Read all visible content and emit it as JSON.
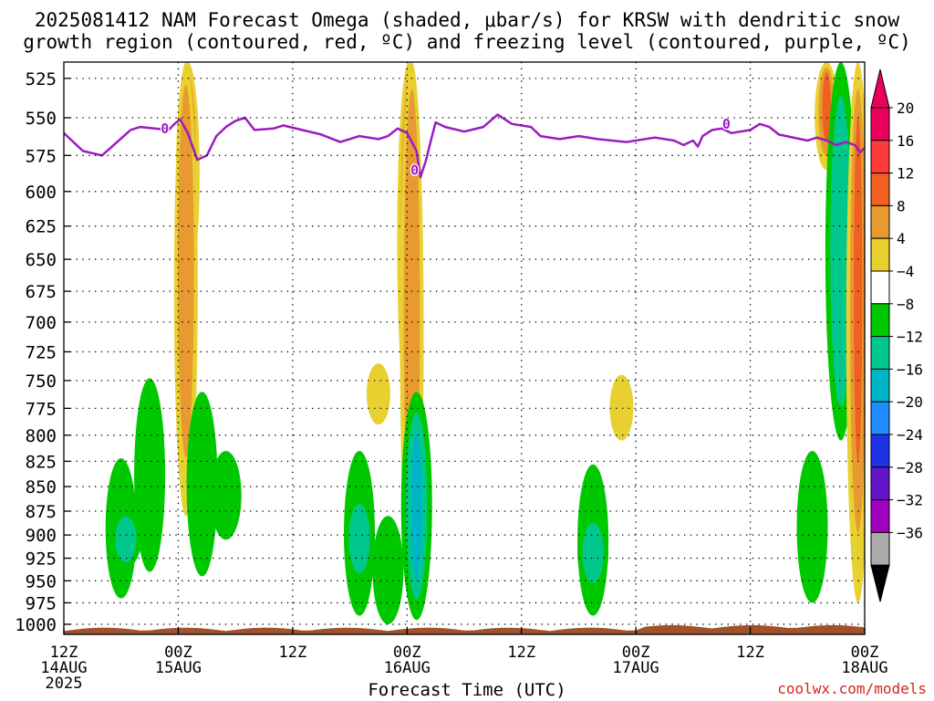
{
  "title": {
    "line1": "2025081412 NAM Forecast Omega (shaded, μbar/s) for KRSW with dendritic snow",
    "line2": "growth region (contoured, red, ºC) and freezing level (contoured, purple, ºC)"
  },
  "credit": "coolwx.com/models",
  "chart_data": {
    "type": "heatmap",
    "title": "2025081412 NAM Forecast Omega (shaded, μbar/s) for KRSW with dendritic snow growth region (contoured, red, ºC) and freezing level (contoured, purple, ºC)",
    "xlabel": "Forecast Time (UTC)",
    "ylabel": "",
    "y_ticks": [
      525,
      550,
      575,
      600,
      625,
      650,
      675,
      700,
      725,
      750,
      775,
      800,
      825,
      850,
      875,
      900,
      925,
      950,
      975,
      1000
    ],
    "y_scale": "pressure (log), inverted",
    "ylim": [
      1012,
      515
    ],
    "xlim_hours": [
      0,
      84
    ],
    "x_ticks": [
      {
        "hour": 0,
        "lines": [
          "12Z",
          "14AUG",
          "2025"
        ]
      },
      {
        "hour": 12,
        "lines": [
          "00Z",
          "15AUG"
        ]
      },
      {
        "hour": 24,
        "lines": [
          "12Z"
        ]
      },
      {
        "hour": 36,
        "lines": [
          "00Z",
          "16AUG"
        ]
      },
      {
        "hour": 48,
        "lines": [
          "12Z"
        ]
      },
      {
        "hour": 60,
        "lines": [
          "00Z",
          "17AUG"
        ]
      },
      {
        "hour": 72,
        "lines": [
          "12Z"
        ]
      },
      {
        "hour": 84,
        "lines": [
          "00Z",
          "18AUG"
        ]
      }
    ],
    "grid": true,
    "colorbar": {
      "labels": [
        "20",
        "16",
        "12",
        "8",
        "4",
        "−4",
        "−8",
        "−12",
        "−16",
        "−20",
        "−24",
        "−28",
        "−32",
        "−36"
      ],
      "colors": [
        "#e8005c",
        "#ff3a3a",
        "#f06020",
        "#e89a30",
        "#e8d030",
        "#ffffff",
        "#00c800",
        "#00c88c",
        "#00b4c8",
        "#1e8cff",
        "#1e32e6",
        "#6414c8",
        "#a000c0",
        "#aaaaaa"
      ],
      "top_color": "#e8005c",
      "bottom_color": "#000000"
    },
    "freezing_level": {
      "color": "#9b1cc0",
      "label": "0",
      "points": [
        [
          0,
          560
        ],
        [
          2,
          572
        ],
        [
          4,
          575
        ],
        [
          7,
          558
        ],
        [
          8,
          556
        ],
        [
          11,
          558
        ],
        [
          11.6,
          554
        ],
        [
          12.2,
          551
        ],
        [
          13,
          560
        ],
        [
          14,
          578
        ],
        [
          15,
          575
        ],
        [
          16,
          562
        ],
        [
          17,
          556
        ],
        [
          18,
          552
        ],
        [
          19,
          550
        ],
        [
          20,
          558
        ],
        [
          22,
          557
        ],
        [
          23,
          555
        ],
        [
          25,
          558
        ],
        [
          27,
          561
        ],
        [
          29,
          566
        ],
        [
          31,
          562
        ],
        [
          33,
          564
        ],
        [
          34,
          562
        ],
        [
          35,
          557
        ],
        [
          36,
          560
        ],
        [
          37,
          572
        ],
        [
          37.4,
          590
        ],
        [
          38,
          578
        ],
        [
          38.5,
          565
        ],
        [
          39,
          553
        ],
        [
          40,
          556
        ],
        [
          42,
          559
        ],
        [
          44,
          556
        ],
        [
          45.5,
          548
        ],
        [
          47,
          554
        ],
        [
          49,
          556
        ],
        [
          50,
          562
        ],
        [
          52,
          564
        ],
        [
          54,
          562
        ],
        [
          56,
          564
        ],
        [
          59,
          566
        ],
        [
          62,
          563
        ],
        [
          64,
          565
        ],
        [
          65,
          568
        ],
        [
          66,
          565
        ],
        [
          66.5,
          569
        ],
        [
          67,
          562
        ],
        [
          68,
          558
        ],
        [
          69,
          557
        ],
        [
          70,
          560
        ],
        [
          72,
          558
        ],
        [
          73,
          554
        ],
        [
          74,
          556
        ],
        [
          75,
          561
        ],
        [
          78,
          565
        ],
        [
          79,
          563
        ],
        [
          80,
          565
        ],
        [
          81,
          568
        ],
        [
          82,
          566
        ],
        [
          83,
          568
        ],
        [
          83.5,
          573
        ],
        [
          84,
          570
        ]
      ],
      "labels_at": [
        [
          10.6,
          557
        ],
        [
          36.8,
          585
        ],
        [
          69.5,
          554
        ]
      ]
    },
    "omega_features": [
      {
        "sign": "negative",
        "level_min": -8,
        "center_hour": 6,
        "p_top": 822,
        "p_bottom": 970
      },
      {
        "sign": "negative",
        "level_min": -12,
        "center_hour": 6.5,
        "p_top": 875,
        "p_bottom": 935
      },
      {
        "sign": "negative",
        "level_min": -8,
        "center_hour": 9,
        "p_top": 748,
        "p_bottom": 940
      },
      {
        "sign": "positive",
        "level_max": 20,
        "center_hour": 13,
        "p_top": 515,
        "p_bottom": 670
      },
      {
        "sign": "positive",
        "level_max": 8,
        "center_hour": 12.8,
        "p_top": 515,
        "p_bottom": 880
      },
      {
        "sign": "negative",
        "level_min": -8,
        "center_hour": 14.5,
        "p_top": 760,
        "p_bottom": 945
      },
      {
        "sign": "negative",
        "level_min": -8,
        "center_hour": 17,
        "p_top": 815,
        "p_bottom": 905
      },
      {
        "sign": "negative",
        "level_min": -8,
        "center_hour": 31,
        "p_top": 815,
        "p_bottom": 990
      },
      {
        "sign": "negative",
        "level_min": -12,
        "center_hour": 31,
        "p_top": 860,
        "p_bottom": 950
      },
      {
        "sign": "positive",
        "level_max": 4,
        "center_hour": 33,
        "p_top": 735,
        "p_bottom": 790
      },
      {
        "sign": "negative",
        "level_min": -8,
        "center_hour": 34,
        "p_top": 880,
        "p_bottom": 1000
      },
      {
        "sign": "positive",
        "level_max": 20,
        "center_hour": 36.2,
        "p_top": 515,
        "p_bottom": 785
      },
      {
        "sign": "positive",
        "level_max": 8,
        "center_hour": 36.5,
        "p_top": 515,
        "p_bottom": 980
      },
      {
        "sign": "negative",
        "level_min": -16,
        "center_hour": 37,
        "p_top": 760,
        "p_bottom": 995
      },
      {
        "sign": "negative",
        "level_min": -8,
        "center_hour": 55.5,
        "p_top": 828,
        "p_bottom": 990
      },
      {
        "sign": "negative",
        "level_min": -12,
        "center_hour": 55.5,
        "p_top": 880,
        "p_bottom": 960
      },
      {
        "sign": "positive",
        "level_max": 4,
        "center_hour": 58.5,
        "p_top": 745,
        "p_bottom": 805
      },
      {
        "sign": "negative",
        "level_min": -8,
        "center_hour": 78.5,
        "p_top": 815,
        "p_bottom": 975
      },
      {
        "sign": "positive",
        "level_max": 12,
        "center_hour": 80,
        "p_top": 515,
        "p_bottom": 585
      },
      {
        "sign": "negative",
        "level_min": -12,
        "center_hour": 81.5,
        "p_top": 515,
        "p_bottom": 805
      },
      {
        "sign": "positive",
        "level_max": 12,
        "center_hour": 83.3,
        "p_top": 515,
        "p_bottom": 975
      }
    ],
    "surface_terrain": {
      "color": "#a0522d"
    }
  }
}
